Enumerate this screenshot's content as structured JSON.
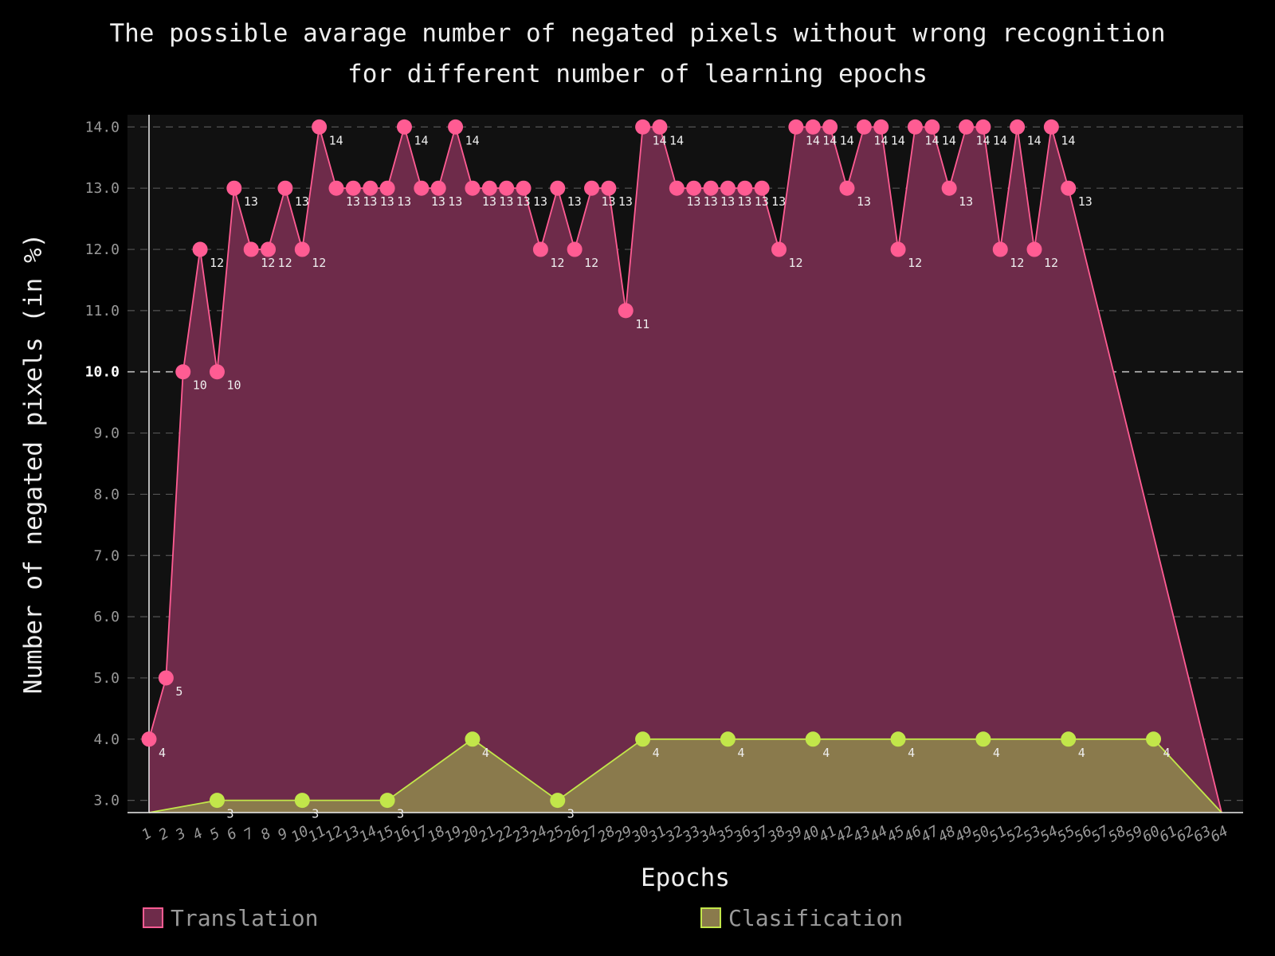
{
  "chart_data": {
    "type": "area",
    "title_lines": [
      "The possible avarage number of negated pixels without wrong recognition",
      "for different number of learning epochs"
    ],
    "xlabel": "Epochs",
    "ylabel": "Number of negated pixels (in %)",
    "ylim": [
      2.8,
      14.2
    ],
    "yticks": [
      "3.0",
      "4.0",
      "5.0",
      "6.0",
      "7.0",
      "8.0",
      "9.0",
      "10.0",
      "11.0",
      "12.0",
      "13.0",
      "14.0"
    ],
    "highlight_ytick": "10.0",
    "x_categories": [
      "1",
      "2",
      "3",
      "4",
      "5",
      "6",
      "7",
      "8",
      "9",
      "10",
      "11",
      "12",
      "13",
      "14",
      "15",
      "16",
      "17",
      "18",
      "19",
      "20",
      "21",
      "22",
      "23",
      "24",
      "25",
      "26",
      "27",
      "28",
      "29",
      "30",
      "31",
      "32",
      "33",
      "34",
      "35",
      "36",
      "37",
      "38",
      "39",
      "40",
      "41",
      "42",
      "43",
      "44",
      "45",
      "46",
      "47",
      "48",
      "49",
      "50",
      "51",
      "52",
      "53",
      "54",
      "55",
      "56",
      "57",
      "58",
      "59",
      "60",
      "61",
      "62",
      "63",
      "64"
    ],
    "grid": true,
    "legend_position": "bottom",
    "series": [
      {
        "name": "Translation",
        "color": "#ff5c93",
        "fill": "#6e2b4a",
        "points": [
          [
            1,
            4
          ],
          [
            2,
            5
          ],
          [
            3,
            10
          ],
          [
            4,
            12
          ],
          [
            5,
            10
          ],
          [
            6,
            13
          ],
          [
            7,
            12
          ],
          [
            8,
            12
          ],
          [
            9,
            13
          ],
          [
            10,
            12
          ],
          [
            11,
            14
          ],
          [
            12,
            13
          ],
          [
            13,
            13
          ],
          [
            14,
            13
          ],
          [
            15,
            13
          ],
          [
            16,
            14
          ],
          [
            17,
            13
          ],
          [
            18,
            13
          ],
          [
            19,
            14
          ],
          [
            20,
            13
          ],
          [
            21,
            13
          ],
          [
            22,
            13
          ],
          [
            23,
            13
          ],
          [
            24,
            12
          ],
          [
            25,
            13
          ],
          [
            26,
            12
          ],
          [
            27,
            13
          ],
          [
            28,
            13
          ],
          [
            29,
            11
          ],
          [
            30,
            14
          ],
          [
            31,
            14
          ],
          [
            32,
            13
          ],
          [
            33,
            13
          ],
          [
            34,
            13
          ],
          [
            35,
            13
          ],
          [
            36,
            13
          ],
          [
            37,
            13
          ],
          [
            38,
            12
          ],
          [
            39,
            14
          ],
          [
            40,
            14
          ],
          [
            41,
            14
          ],
          [
            42,
            13
          ],
          [
            43,
            14
          ],
          [
            44,
            14
          ],
          [
            45,
            12
          ],
          [
            46,
            14
          ],
          [
            47,
            14
          ],
          [
            48,
            13
          ],
          [
            49,
            14
          ],
          [
            50,
            14
          ],
          [
            51,
            12
          ],
          [
            52,
            14
          ],
          [
            53,
            12
          ],
          [
            54,
            14
          ],
          [
            55,
            13
          ]
        ],
        "end_x": 64
      },
      {
        "name": "Clasification",
        "color": "#c2e64a",
        "fill": "#8a7a4c",
        "points": [
          [
            5,
            3
          ],
          [
            10,
            3
          ],
          [
            15,
            3
          ],
          [
            20,
            4
          ],
          [
            25,
            3
          ],
          [
            30,
            4
          ],
          [
            35,
            4
          ],
          [
            40,
            4
          ],
          [
            45,
            4
          ],
          [
            50,
            4
          ],
          [
            55,
            4
          ],
          [
            60,
            4
          ]
        ],
        "start_x": 1,
        "end_x": 64
      }
    ]
  }
}
